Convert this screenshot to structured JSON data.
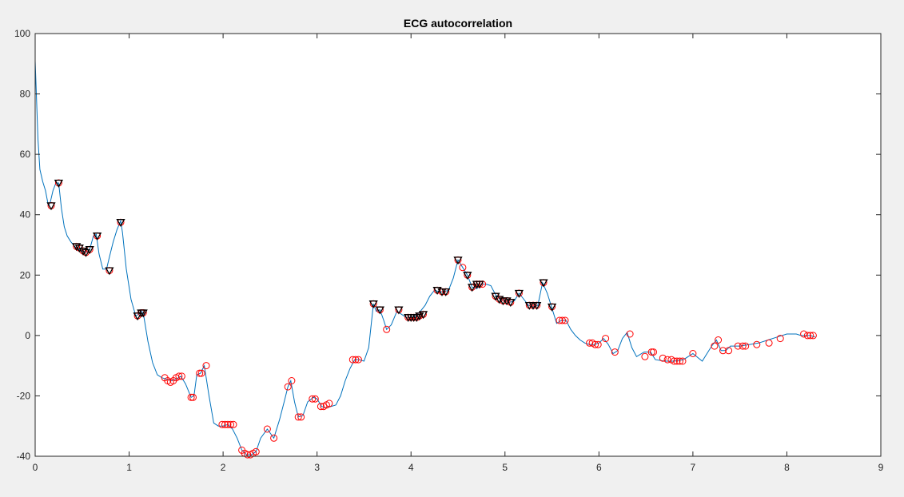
{
  "chart_data": {
    "type": "line",
    "title": "ECG autocorrelation",
    "xlabel": "",
    "ylabel": "",
    "xlim": [
      0,
      9
    ],
    "ylim": [
      -40,
      100
    ],
    "xticks": [
      0,
      1,
      2,
      3,
      4,
      5,
      6,
      7,
      8,
      9
    ],
    "yticks": [
      -40,
      -20,
      0,
      20,
      40,
      60,
      80,
      100
    ],
    "grid": false,
    "colors": {
      "line": "#0072bd",
      "circle": "#ff0000",
      "triangle": "#000000",
      "axes_bg": "#ffffff",
      "figure_bg": "#f0f0f0"
    },
    "series": [
      {
        "x": [
          0,
          0.03,
          0.05,
          0.08,
          0.11,
          0.14,
          0.16,
          0.19,
          0.22,
          0.25,
          0.28,
          0.31,
          0.34,
          0.38,
          0.42,
          0.46,
          0.5,
          0.54,
          0.58,
          0.62,
          0.65,
          0.68,
          0.72,
          0.76,
          0.79,
          0.83,
          0.87,
          0.91,
          0.93,
          0.97,
          1.02,
          1.07,
          1.1,
          1.13,
          1.15,
          1.2,
          1.25,
          1.3,
          1.35,
          1.4,
          1.45,
          1.5,
          1.55,
          1.6,
          1.66,
          1.69,
          1.72,
          1.76,
          1.8,
          1.85,
          1.9,
          1.95,
          2.0,
          2.05,
          2.1,
          2.15,
          2.2,
          2.25,
          2.3,
          2.35,
          2.4,
          2.47,
          2.54,
          2.6,
          2.65,
          2.69,
          2.72,
          2.76,
          2.8,
          2.85,
          2.9,
          2.96,
          3.0,
          3.05,
          3.1,
          3.15,
          3.2,
          3.25,
          3.3,
          3.35,
          3.4,
          3.45,
          3.5,
          3.55,
          3.6,
          3.63,
          3.67,
          3.71,
          3.74,
          3.79,
          3.85,
          3.9,
          3.95,
          4.0,
          4.05,
          4.1,
          4.15,
          4.2,
          4.25,
          4.3,
          4.35,
          4.4,
          4.45,
          4.5,
          4.55,
          4.6,
          4.65,
          4.7,
          4.75,
          4.8,
          4.85,
          4.9,
          4.95,
          5.0,
          5.05,
          5.1,
          5.15,
          5.2,
          5.25,
          5.3,
          5.35,
          5.4,
          5.45,
          5.5,
          5.55,
          5.6,
          5.65,
          5.7,
          5.75,
          5.8,
          5.85,
          5.9,
          5.95,
          6.0,
          6.05,
          6.1,
          6.15,
          6.2,
          6.25,
          6.3,
          6.35,
          6.4,
          6.48,
          6.55,
          6.6,
          6.7,
          6.8,
          6.9,
          7.0,
          7.1,
          7.15,
          7.2,
          7.25,
          7.3,
          7.35,
          7.4,
          7.5,
          7.6,
          7.7,
          7.8,
          7.9,
          8.0,
          8.1,
          8.15,
          8.2,
          8.25,
          8.3
        ],
        "y": [
          91,
          65,
          55,
          51,
          48,
          43,
          44,
          48,
          50.5,
          50.5,
          42,
          36,
          33,
          31,
          29.5,
          28.5,
          28,
          27.5,
          28.5,
          33,
          33.5,
          27,
          22,
          22,
          26,
          31,
          35,
          38,
          34,
          22,
          12,
          6.5,
          7,
          8,
          7.5,
          -2,
          -9,
          -13,
          -14,
          -14.5,
          -15,
          -14.5,
          -13.5,
          -16,
          -20.5,
          -20,
          -13,
          -12.5,
          -10,
          -20,
          -29,
          -30,
          -30,
          -29.5,
          -31,
          -34,
          -38,
          -39.5,
          -39.5,
          -38.5,
          -34,
          -31,
          -34,
          -28,
          -22,
          -17,
          -15,
          -22,
          -27,
          -26.5,
          -22,
          -20.5,
          -21,
          -23.5,
          -24,
          -23.5,
          -23,
          -20,
          -15,
          -11,
          -8,
          -8,
          -8.5,
          -4,
          10.5,
          8,
          8.5,
          5,
          2,
          3.5,
          8,
          7,
          6,
          6,
          6.5,
          8,
          10,
          13,
          15,
          14.5,
          14.5,
          15,
          19,
          25,
          22.5,
          20,
          16,
          15.5,
          17,
          17,
          16.5,
          13.5,
          12,
          11.5,
          11,
          11.5,
          14,
          12,
          10,
          9.5,
          10,
          17.5,
          14,
          9,
          4,
          5,
          5,
          2,
          0,
          -1.5,
          -2.5,
          -3,
          -3,
          -2.5,
          -1,
          -3,
          -6,
          -5,
          -1,
          1,
          -4,
          -7,
          -5.5,
          -5.5,
          -8,
          -8.5,
          -8.5,
          -8,
          -6,
          -8.5,
          -6,
          -3.5,
          -1.5,
          -5,
          -5,
          -3.5,
          -3.5,
          -3,
          -2.5,
          -1.5,
          -0.5,
          0.5,
          0.5,
          0,
          0,
          0,
          -0.5
        ]
      }
    ],
    "circle_markers": {
      "x": [
        0.17,
        0.25,
        0.44,
        0.47,
        0.51,
        0.54,
        0.58,
        0.66,
        0.79,
        0.91,
        1.09,
        1.13,
        1.15,
        1.38,
        1.41,
        1.44,
        1.47,
        1.5,
        1.53,
        1.56,
        1.66,
        1.68,
        1.75,
        1.77,
        1.82,
        1.99,
        2.02,
        2.05,
        2.08,
        2.11,
        2.2,
        2.23,
        2.26,
        2.29,
        2.32,
        2.35,
        2.47,
        2.54,
        2.69,
        2.73,
        2.8,
        2.83,
        2.95,
        2.98,
        3.04,
        3.07,
        3.1,
        3.13,
        3.38,
        3.41,
        3.44,
        3.6,
        3.67,
        3.74,
        3.87,
        3.97,
        4.0,
        4.03,
        4.06,
        4.09,
        4.13,
        4.28,
        4.33,
        4.37,
        4.5,
        4.55,
        4.6,
        4.65,
        4.7,
        4.73,
        4.76,
        4.9,
        4.94,
        4.98,
        5.02,
        5.06,
        5.15,
        5.26,
        5.3,
        5.34,
        5.41,
        5.5,
        5.58,
        5.61,
        5.64,
        5.9,
        5.93,
        5.96,
        5.99,
        6.07,
        6.17,
        6.33,
        6.49,
        6.56,
        6.58,
        6.68,
        6.73,
        6.77,
        6.8,
        6.83,
        6.86,
        6.89,
        7.0,
        7.23,
        7.27,
        7.32,
        7.38,
        7.48,
        7.53,
        7.56,
        7.68,
        7.81,
        7.93,
        8.18,
        8.22,
        8.25,
        8.28
      ],
      "y": [
        43,
        50.5,
        29.5,
        29,
        28,
        27.5,
        28.5,
        33,
        21.5,
        37.5,
        6.5,
        7.5,
        7.5,
        -14,
        -15,
        -15.5,
        -15,
        -14,
        -13.5,
        -13.5,
        -20.5,
        -20.5,
        -12.5,
        -12.5,
        -10,
        -29.5,
        -29.5,
        -29.5,
        -29.5,
        -29.5,
        -38,
        -39,
        -39.5,
        -39.5,
        -39,
        -38.5,
        -31,
        -34,
        -17,
        -15,
        -27,
        -27,
        -21,
        -21,
        -23.5,
        -23.5,
        -23,
        -22.5,
        -8,
        -8,
        -8,
        10.5,
        8.5,
        2,
        8.5,
        6,
        6,
        6,
        6,
        6.5,
        7,
        15,
        14.5,
        14.5,
        25,
        22.5,
        20,
        16,
        17,
        17,
        17,
        13,
        12,
        11.5,
        11.5,
        11,
        14,
        10,
        10,
        10,
        17.5,
        9.5,
        5,
        5,
        5,
        -2.5,
        -2.5,
        -3,
        -3,
        -1,
        -5.5,
        0.5,
        -7,
        -5.5,
        -5.5,
        -7.5,
        -8,
        -8,
        -8.5,
        -8.5,
        -8.5,
        -8.5,
        -6,
        -3.5,
        -1.5,
        -5,
        -5,
        -3.5,
        -3.5,
        -3.5,
        -3,
        -2.5,
        -1,
        0.5,
        0,
        0,
        0
      ]
    },
    "triangle_markers": {
      "x": [
        0.17,
        0.25,
        0.44,
        0.47,
        0.51,
        0.54,
        0.58,
        0.66,
        0.79,
        0.91,
        1.09,
        1.13,
        1.15,
        3.6,
        3.67,
        3.87,
        3.97,
        4.0,
        4.03,
        4.06,
        4.09,
        4.13,
        4.28,
        4.33,
        4.37,
        4.5,
        4.6,
        4.65,
        4.7,
        4.73,
        4.9,
        4.94,
        4.98,
        5.02,
        5.06,
        5.15,
        5.26,
        5.3,
        5.34,
        5.41,
        5.5
      ],
      "y": [
        43,
        50.5,
        29.5,
        29,
        28,
        27.5,
        28.5,
        33,
        21.5,
        37.5,
        6.5,
        7.5,
        7.5,
        10.5,
        8.5,
        8.5,
        6,
        6,
        6,
        6,
        6.5,
        7,
        15,
        14.5,
        14.5,
        25,
        20,
        16,
        17,
        17,
        13,
        12,
        11.5,
        11.5,
        11,
        14,
        10,
        10,
        10,
        17.5,
        9.5
      ]
    }
  }
}
